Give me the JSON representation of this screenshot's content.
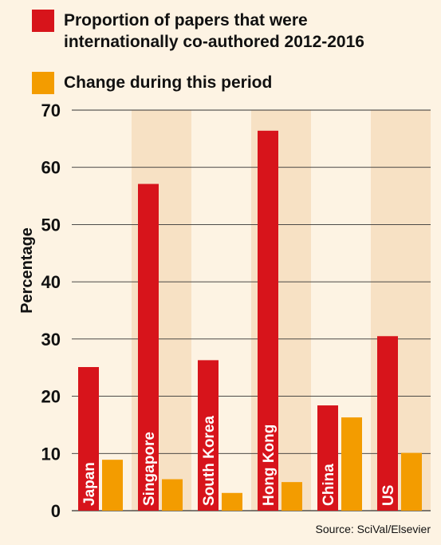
{
  "chart_data": {
    "type": "bar",
    "categories": [
      "Japan",
      "Singapore",
      "South Korea",
      "Hong Kong",
      "China",
      "US"
    ],
    "series": [
      {
        "name": "Proportion of papers that were internationally co-authored 2012-2016",
        "name_lines": [
          "Proportion of papers that were",
          "internationally co-authored 2012-2016"
        ],
        "color": "#d7141b",
        "values": [
          25.1,
          57.1,
          26.3,
          66.4,
          18.4,
          30.5
        ]
      },
      {
        "name": "Change during this period",
        "name_lines": [
          "Change during this period"
        ],
        "color": "#f39c00",
        "values": [
          8.9,
          5.5,
          3.1,
          5.0,
          16.3,
          10.1
        ]
      }
    ],
    "ylabel": "Percentage",
    "ylim": [
      0,
      70
    ],
    "yticks": [
      0,
      10,
      20,
      30,
      40,
      50,
      60,
      70
    ],
    "grid": true,
    "legend_position": "top-left"
  },
  "source": "Source: SciVal/Elsevier",
  "colors": {
    "background": "#fdf3e3",
    "band": "#f7e1c4",
    "grid": "#333333"
  }
}
